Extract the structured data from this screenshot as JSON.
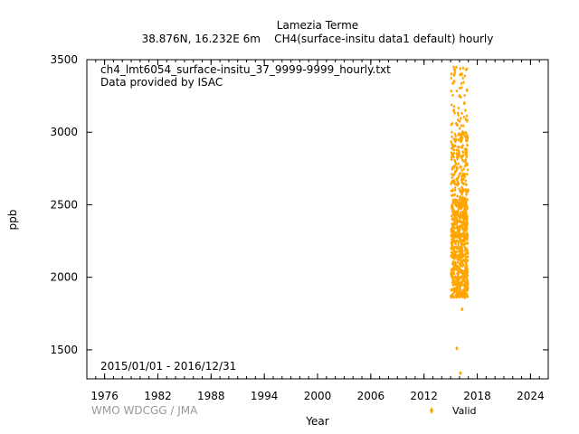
{
  "chart_data": {
    "type": "scatter",
    "title": "Lamezia Terme",
    "subtitle": "38.876N, 16.232E 6m    CH4(surface-insitu data1 default) hourly",
    "xlabel": "Year",
    "ylabel": "ppb",
    "xlim": [
      1974,
      2026
    ],
    "ylim": [
      1300,
      3500
    ],
    "x_ticks": [
      "1976",
      "1982",
      "1988",
      "1994",
      "2000",
      "2006",
      "2012",
      "2018",
      "2024"
    ],
    "y_ticks": [
      "1500",
      "2000",
      "2500",
      "3000",
      "3500"
    ],
    "annotations": {
      "file": "ch4_lmt6054_surface-insitu_37_9999-9999_hourly.txt",
      "provider": "Data provided by ISAC",
      "period": "2015/01/01 - 2016/12/31"
    },
    "credit": "WMO WDCGG / JMA",
    "legend": {
      "position": "bottom-right",
      "entries": [
        "Valid"
      ]
    },
    "series": [
      {
        "name": "Valid",
        "color": "#FFA500",
        "marker": "diamond",
        "note": "dense hourly cloud spanning 2015-2016, bulk between ~1860 and ~2650 ppb",
        "points": [
          [
            2015.05,
            1870
          ],
          [
            2015.1,
            2050
          ],
          [
            2015.15,
            2200
          ],
          [
            2015.2,
            2400
          ],
          [
            2015.25,
            2600
          ],
          [
            2015.3,
            2900
          ],
          [
            2015.35,
            3150
          ],
          [
            2015.4,
            3350
          ],
          [
            2015.45,
            3430
          ],
          [
            2015.5,
            2100
          ],
          [
            2015.55,
            2300
          ],
          [
            2015.6,
            2500
          ],
          [
            2015.65,
            1900
          ],
          [
            2015.7,
            2750
          ],
          [
            2015.75,
            3050
          ],
          [
            2015.8,
            2450
          ],
          [
            2015.85,
            2650
          ],
          [
            2015.9,
            2000
          ],
          [
            2015.95,
            2850
          ],
          [
            2016.0,
            3250
          ],
          [
            2016.05,
            2350
          ],
          [
            2016.1,
            2550
          ],
          [
            2016.15,
            1950
          ],
          [
            2016.2,
            2150
          ],
          [
            2016.25,
            3400
          ],
          [
            2016.3,
            2700
          ],
          [
            2016.35,
            3000
          ],
          [
            2016.4,
            2250
          ],
          [
            2016.45,
            2600
          ],
          [
            2016.5,
            1880
          ],
          [
            2016.55,
            3200
          ],
          [
            2016.6,
            2400
          ],
          [
            2016.65,
            2800
          ],
          [
            2016.7,
            2050
          ],
          [
            2016.75,
            2500
          ],
          [
            2016.8,
            2950
          ],
          [
            2016.85,
            2300
          ],
          [
            2016.9,
            1920
          ],
          [
            2016.95,
            2600
          ],
          [
            2015.7,
            1510
          ],
          [
            2016.1,
            1340
          ],
          [
            2016.3,
            1780
          ],
          [
            2016.85,
            3290
          ],
          [
            2016.9,
            2960
          ],
          [
            2016.85,
            3080
          ],
          [
            2016.8,
            2780
          ]
        ]
      }
    ]
  }
}
